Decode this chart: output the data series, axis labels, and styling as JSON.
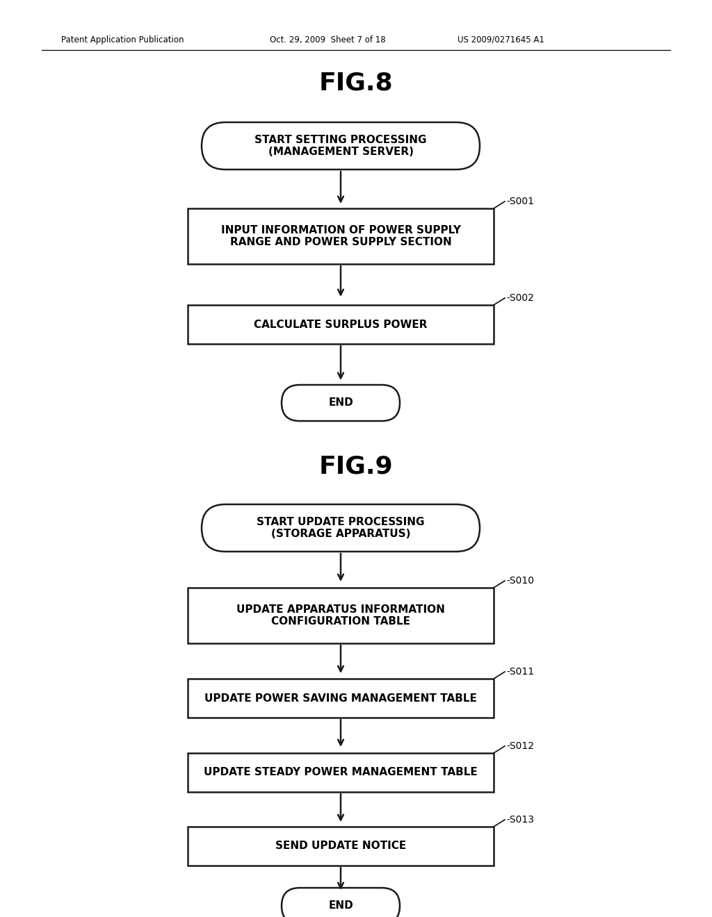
{
  "bg_color": "#ffffff",
  "header_text1": "Patent Application Publication",
  "header_text2": "Oct. 29, 2009  Sheet 7 of 18",
  "header_text3": "US 2009/0271645 A1",
  "fig8_title": "FIG.8",
  "fig9_title": "FIG.9"
}
